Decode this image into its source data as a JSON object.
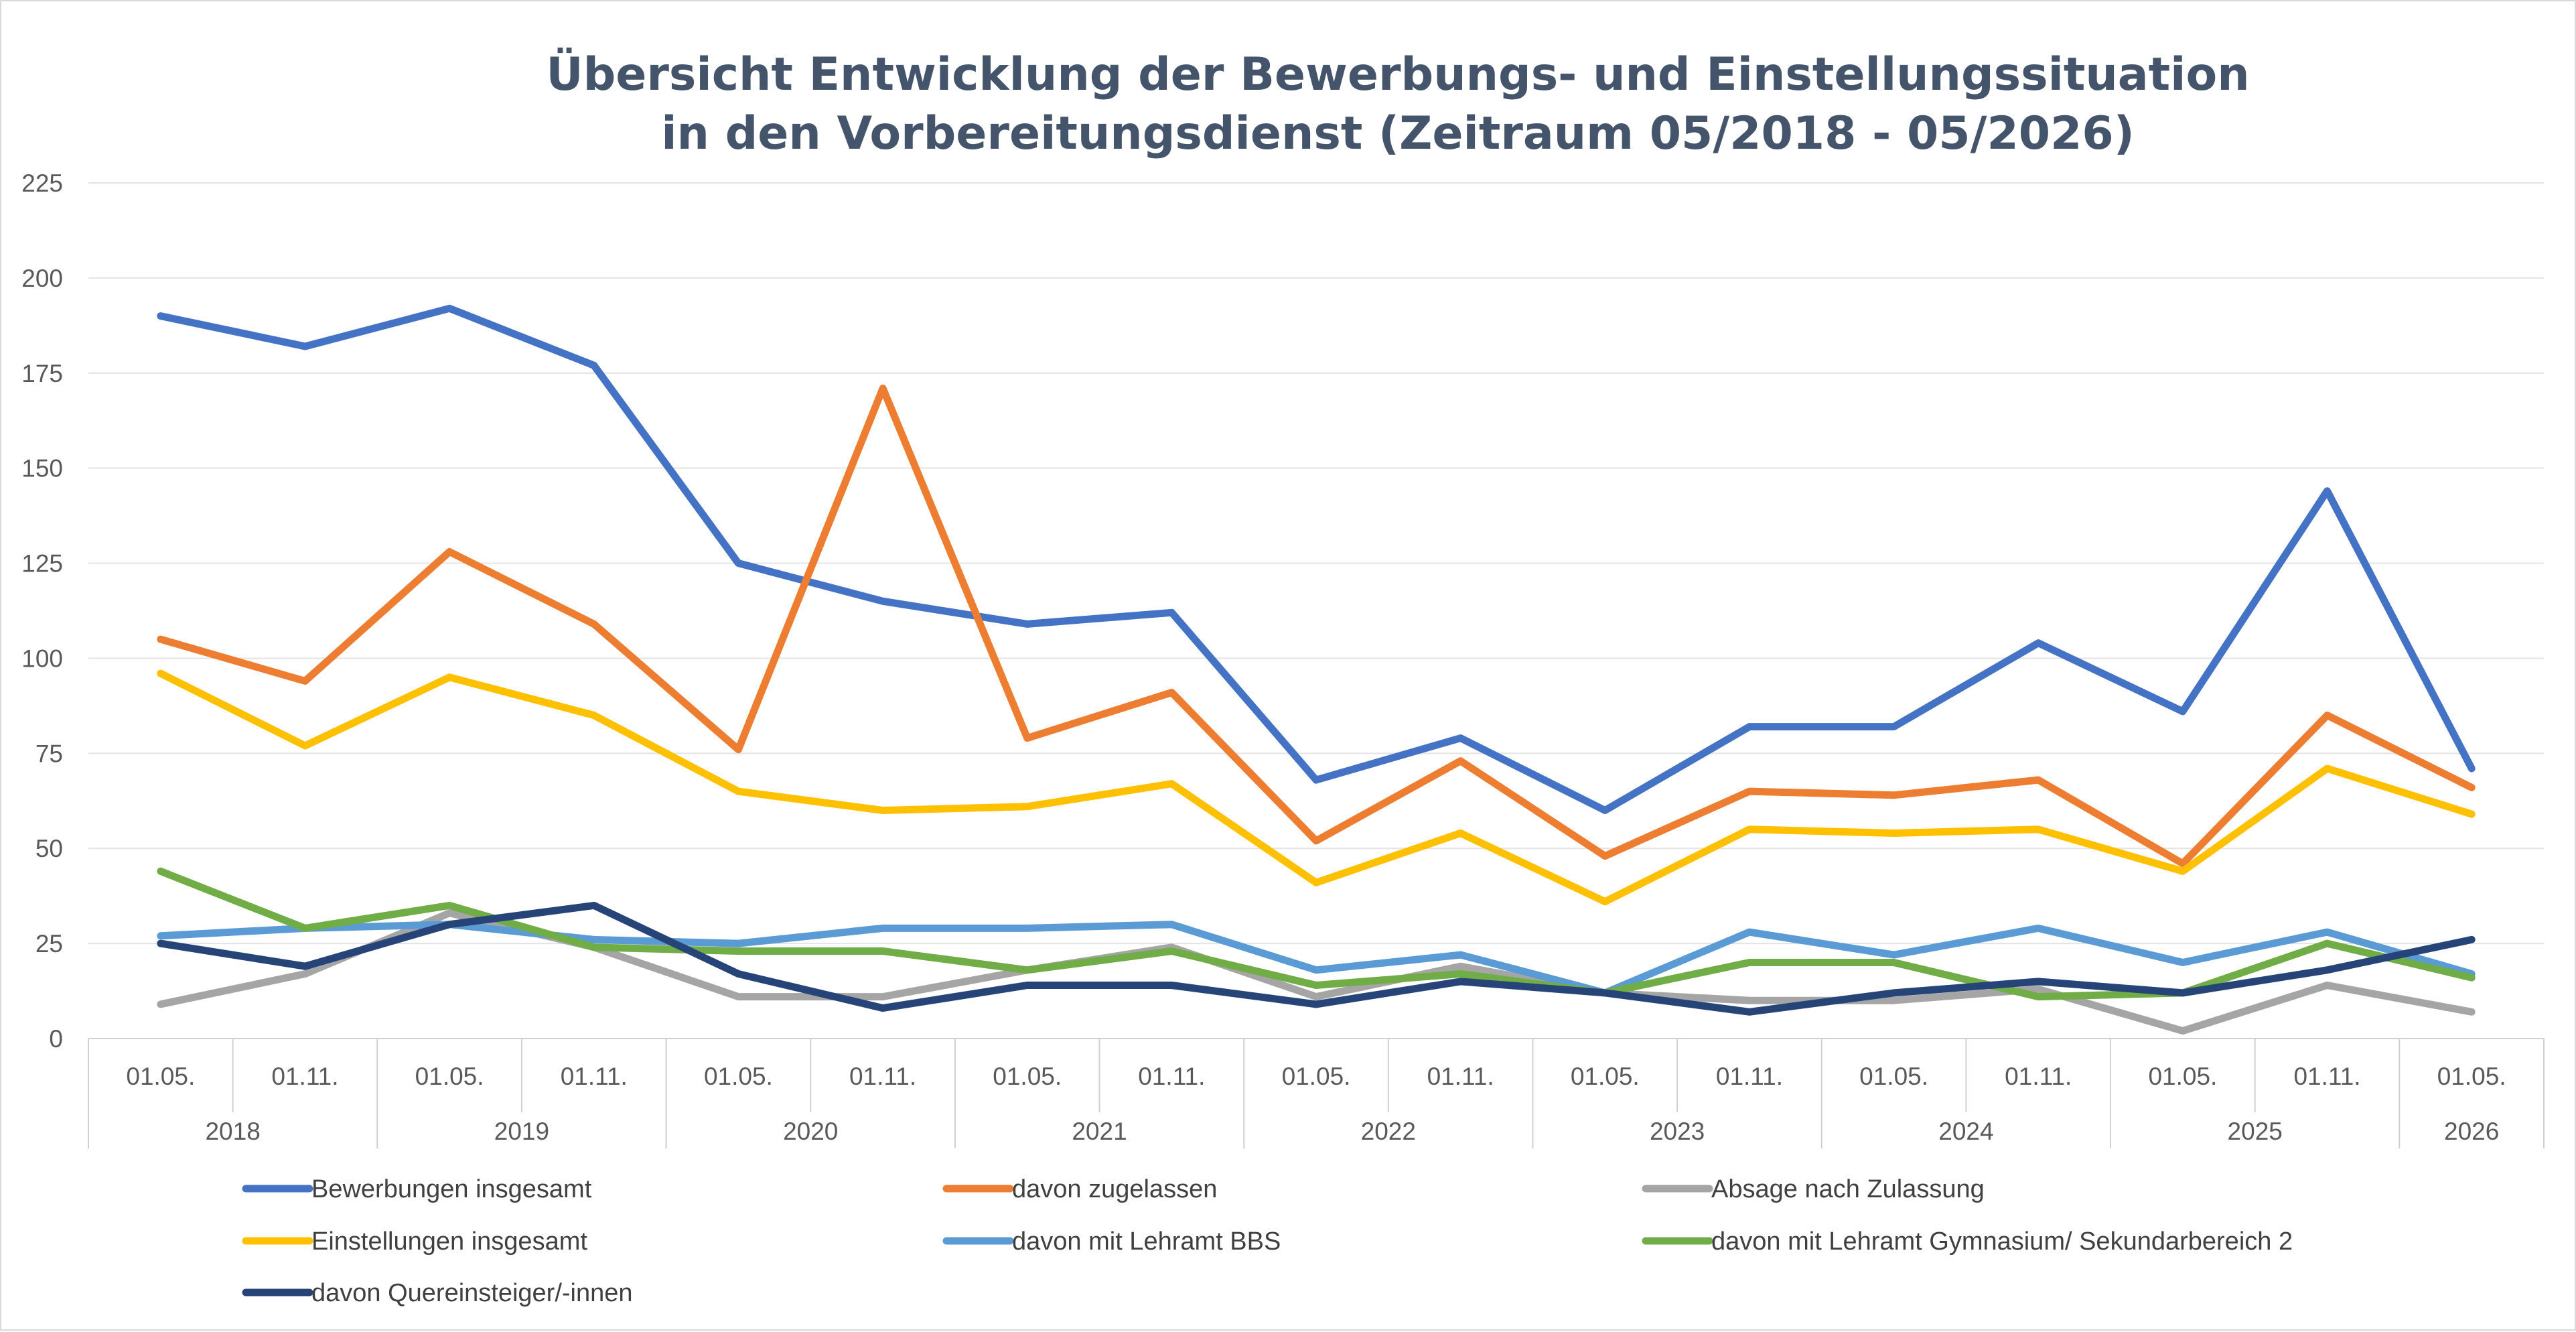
{
  "chart_data": {
    "type": "line",
    "title_lines": [
      "Übersicht Entwicklung der Bewerbungs- und Einstellungssituation",
      "in den Vorbereitungsdienst (Zeitraum 05/2018 - 05/2026)"
    ],
    "xlabel": "",
    "ylabel": "",
    "ylim": [
      0,
      225
    ],
    "yticks": [
      0,
      25,
      50,
      75,
      100,
      125,
      150,
      175,
      200,
      225
    ],
    "grid": "horizontal",
    "legend_position": "bottom",
    "categories": [
      "01.05.",
      "01.11.",
      "01.05.",
      "01.11.",
      "01.05.",
      "01.11.",
      "01.05.",
      "01.11.",
      "01.05.",
      "01.11.",
      "01.05.",
      "01.11.",
      "01.05.",
      "01.11.",
      "01.05.",
      "01.11.",
      "01.05."
    ],
    "year_groups": [
      {
        "label": "2018",
        "span": 2
      },
      {
        "label": "2019",
        "span": 2
      },
      {
        "label": "2020",
        "span": 2
      },
      {
        "label": "2021",
        "span": 2
      },
      {
        "label": "2022",
        "span": 2
      },
      {
        "label": "2023",
        "span": 2
      },
      {
        "label": "2024",
        "span": 2
      },
      {
        "label": "2025",
        "span": 2
      },
      {
        "label": "2026",
        "span": 1
      }
    ],
    "series": [
      {
        "name": "Bewerbungen insgesamt",
        "color": "#4472c4",
        "values": [
          190,
          182,
          192,
          177,
          125,
          115,
          109,
          112,
          68,
          79,
          60,
          82,
          82,
          104,
          86,
          144,
          71
        ]
      },
      {
        "name": "davon zugelassen",
        "color": "#ed7d31",
        "values": [
          105,
          94,
          128,
          109,
          76,
          171,
          79,
          91,
          52,
          73,
          48,
          65,
          64,
          68,
          46,
          85,
          66
        ]
      },
      {
        "name": "Absage nach Zulassung",
        "color": "#a5a5a5",
        "values": [
          9,
          17,
          33,
          24,
          11,
          11,
          18,
          24,
          11,
          19,
          12,
          10,
          10,
          13,
          2,
          14,
          7
        ]
      },
      {
        "name": "Einstellungen insgesamt",
        "color": "#ffc000",
        "values": [
          96,
          77,
          95,
          85,
          65,
          60,
          61,
          67,
          41,
          54,
          36,
          55,
          54,
          55,
          44,
          71,
          59
        ]
      },
      {
        "name": "davon mit Lehramt BBS",
        "color": "#5b9bd5",
        "values": [
          27,
          29,
          30,
          26,
          25,
          29,
          29,
          30,
          18,
          22,
          12,
          28,
          22,
          29,
          20,
          28,
          17
        ]
      },
      {
        "name": "davon mit Lehramt Gymnasium/ Sekundarbereich 2",
        "color": "#70ad47",
        "values": [
          44,
          29,
          35,
          24,
          23,
          23,
          18,
          23,
          14,
          17,
          12,
          20,
          20,
          11,
          12,
          25,
          16
        ]
      },
      {
        "name": "davon Quereinsteiger/-innen",
        "color": "#264478",
        "values": [
          25,
          19,
          30,
          35,
          17,
          8,
          14,
          14,
          9,
          15,
          12,
          7,
          12,
          15,
          12,
          18,
          26
        ]
      }
    ]
  }
}
